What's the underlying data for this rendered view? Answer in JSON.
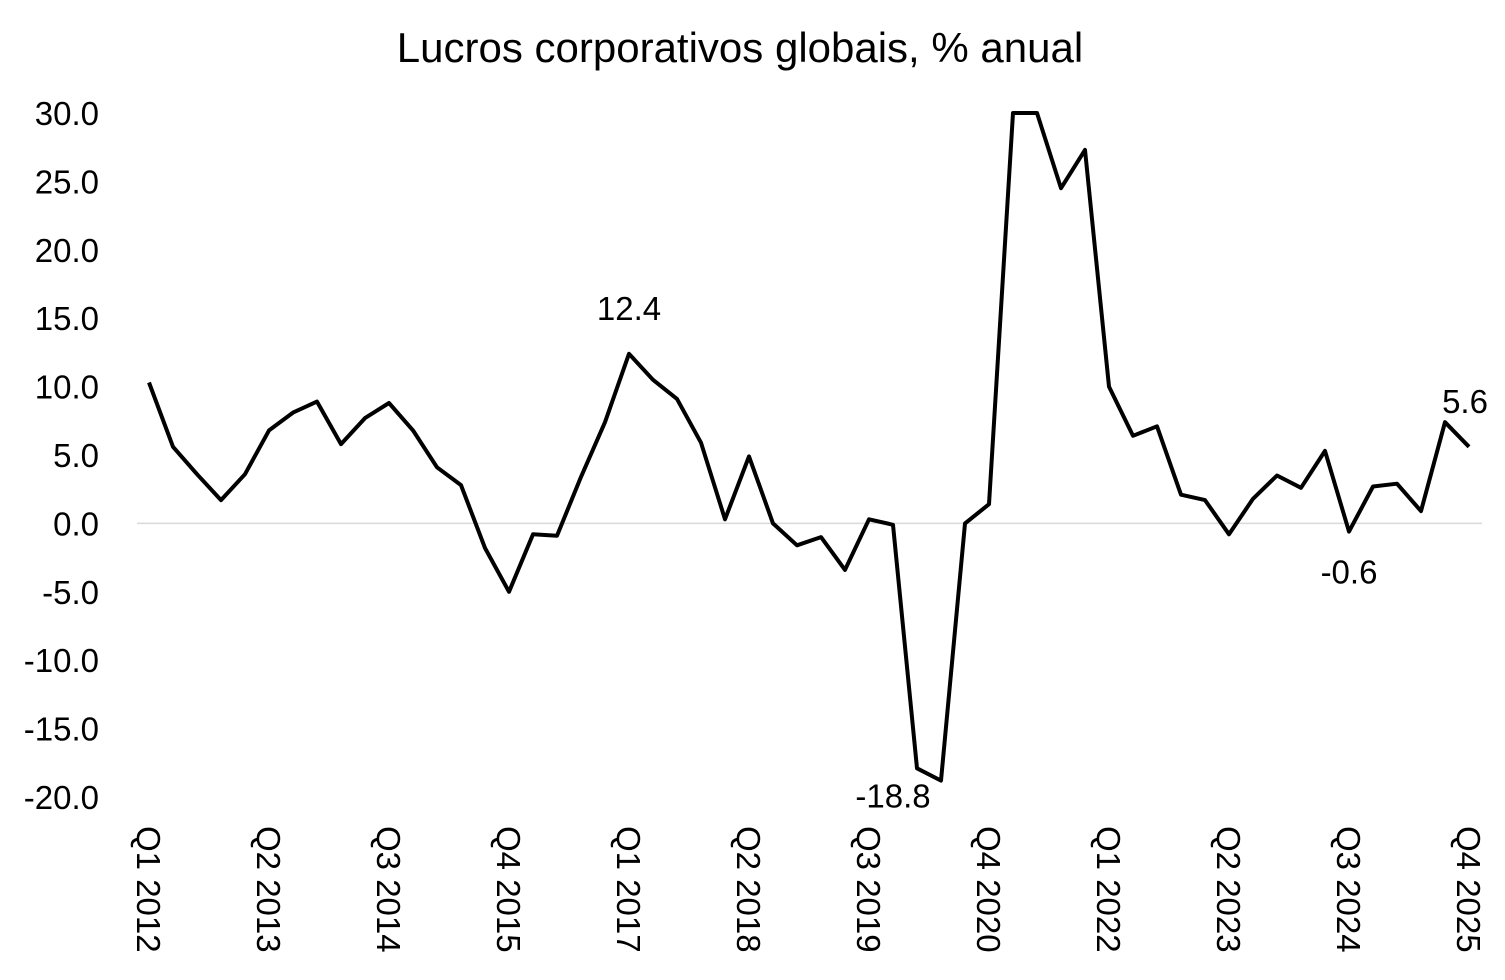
{
  "chart_data": {
    "type": "line",
    "title": "Lucros corporativos globais, % anual",
    "xlabel": "",
    "ylabel": "",
    "ylim": [
      -20,
      30
    ],
    "yticks": [
      "30.0",
      "25.0",
      "20.0",
      "15.0",
      "10.0",
      "5.0",
      "0.0",
      "-5.0",
      "-10.0",
      "-15.0",
      "-20.0"
    ],
    "grid": false,
    "zero_line": true,
    "x_tick_labels": [
      {
        "index": 0,
        "label": "Q1 2012"
      },
      {
        "index": 5,
        "label": "Q2 2013"
      },
      {
        "index": 10,
        "label": "Q3 2014"
      },
      {
        "index": 15,
        "label": "Q4 2015"
      },
      {
        "index": 20,
        "label": "Q1 2017"
      },
      {
        "index": 25,
        "label": "Q2 2018"
      },
      {
        "index": 30,
        "label": "Q3 2019"
      },
      {
        "index": 35,
        "label": "Q4 2020"
      },
      {
        "index": 40,
        "label": "Q1 2022"
      },
      {
        "index": 45,
        "label": "Q2 2023"
      },
      {
        "index": 50,
        "label": "Q3 2024"
      },
      {
        "index": 55,
        "label": "Q4 2025"
      }
    ],
    "series": [
      {
        "color": "#000000",
        "values": [
          10.3,
          5.6,
          3.6,
          1.7,
          3.6,
          6.8,
          8.1,
          8.9,
          5.8,
          7.7,
          8.8,
          6.8,
          4.1,
          2.8,
          -1.8,
          -5.0,
          -0.8,
          -0.9,
          3.4,
          7.4,
          12.4,
          10.5,
          9.1,
          5.9,
          0.3,
          4.9,
          0.0,
          -1.6,
          -1.0,
          -3.4,
          0.3,
          -0.1,
          -17.9,
          -18.8,
          0.0,
          1.4,
          30.0,
          30.0,
          24.5,
          27.3,
          10.0,
          6.4,
          7.1,
          2.1,
          1.7,
          -0.8,
          1.8,
          3.5,
          2.6,
          5.3,
          -0.6,
          2.7,
          2.9,
          0.9,
          7.4,
          5.6
        ]
      }
    ],
    "annotations": [
      {
        "index": 20,
        "text": "12.4",
        "anchor": "above"
      },
      {
        "index": 33,
        "text": "-18.8",
        "anchor": "left-below"
      },
      {
        "index": 50,
        "text": "-0.6",
        "anchor": "below"
      },
      {
        "index": 55,
        "text": "5.6",
        "anchor": "above"
      }
    ]
  }
}
